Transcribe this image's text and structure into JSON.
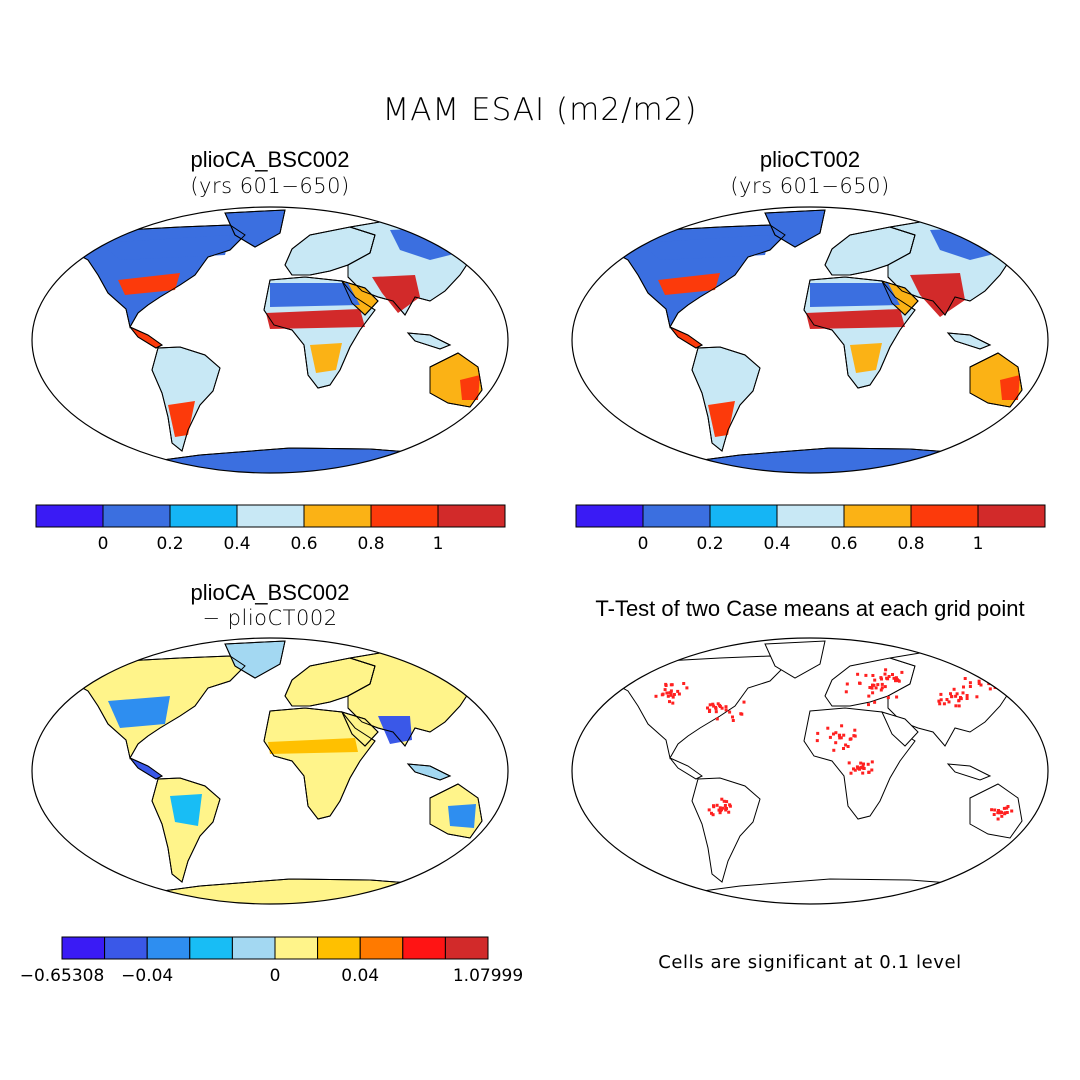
{
  "title": "MAM ESAI (m2/m2)",
  "colors": {
    "abs_scale": [
      "#3a1bf5",
      "#3b6fe0",
      "#15b5f5",
      "#c8e8f5",
      "#fbb215",
      "#fc3a0b",
      "#d22a2a"
    ],
    "diff_scale": [
      "#3a1bf5",
      "#3a58e8",
      "#2e8ef0",
      "#18bdf5",
      "#a3d8f2",
      "#fff48a",
      "#ffc000",
      "#ff7a00",
      "#ff1414",
      "#d22a2a"
    ],
    "sig_dot": "#ff2020"
  },
  "panels": [
    {
      "title": "plioCA_BSC002",
      "subtitle": "(yrs 601−650)"
    },
    {
      "title": "plioCT002",
      "subtitle": "(yrs 601−650)"
    },
    {
      "title": "plioCA_BSC002",
      "subtitle": "− plioCT002"
    },
    {
      "title": "T-Test of two Case means at each grid point"
    }
  ],
  "colorbars": [
    {
      "ticks": [
        "0",
        "0.2",
        "0.4",
        "0.6",
        "0.8",
        "1"
      ]
    },
    {
      "ticks": [
        "0",
        "0.2",
        "0.4",
        "0.6",
        "0.8",
        "1"
      ]
    },
    {
      "ticks": [
        "−0.65308",
        "−0.04",
        "0",
        "0.04",
        "1.07999"
      ]
    }
  ],
  "note": "Cells are significant at 0.1 level"
}
